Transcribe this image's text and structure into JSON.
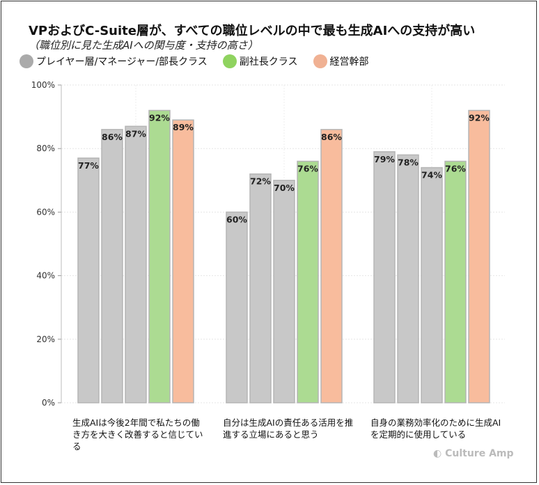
{
  "chart_data": {
    "type": "bar",
    "title": "VPおよびC-Suite層が、すべての職位レベルの中で最も生成AIへの支持が高い",
    "subtitle": "（職位別に見た生成AIへの関与度・支持の高さ）",
    "categories": [
      "生成AIは今後2年間で私たちの働き方を大きく改善すると信じている",
      "自分は生成AIの責任ある活用を推進する立場にあると思う",
      "自身の業務効率化のために生成AIを定期的に使用している"
    ],
    "legend": [
      {
        "name": "プレイヤー層/マネージャー/部長クラス",
        "color": "#aaaaaa"
      },
      {
        "name": "副社長クラス",
        "color": "#8fd35f"
      },
      {
        "name": "経営幹部",
        "color": "#f0b193"
      }
    ],
    "bar_groups": [
      [
        {
          "value": 77,
          "class": 0
        },
        {
          "value": 86,
          "class": 0
        },
        {
          "value": 87,
          "class": 0
        },
        {
          "value": 92,
          "class": 1
        },
        {
          "value": 89,
          "class": 2
        }
      ],
      [
        {
          "value": 60,
          "class": 0
        },
        {
          "value": 72,
          "class": 0
        },
        {
          "value": 70,
          "class": 0
        },
        {
          "value": 76,
          "class": 1
        },
        {
          "value": 86,
          "class": 2
        }
      ],
      [
        {
          "value": 79,
          "class": 0
        },
        {
          "value": 78,
          "class": 0
        },
        {
          "value": 74,
          "class": 0
        },
        {
          "value": 76,
          "class": 1
        },
        {
          "value": 92,
          "class": 2
        }
      ]
    ],
    "bar_fill_colors": [
      "#c8c8c8",
      "#acdb92",
      "#f8bc9d"
    ],
    "yticks": [
      "0%",
      "20%",
      "40%",
      "60%",
      "80%",
      "100%"
    ],
    "ylim": [
      0,
      100
    ],
    "grid": true,
    "legend_placement": "top-left"
  },
  "brand": "Culture Amp"
}
